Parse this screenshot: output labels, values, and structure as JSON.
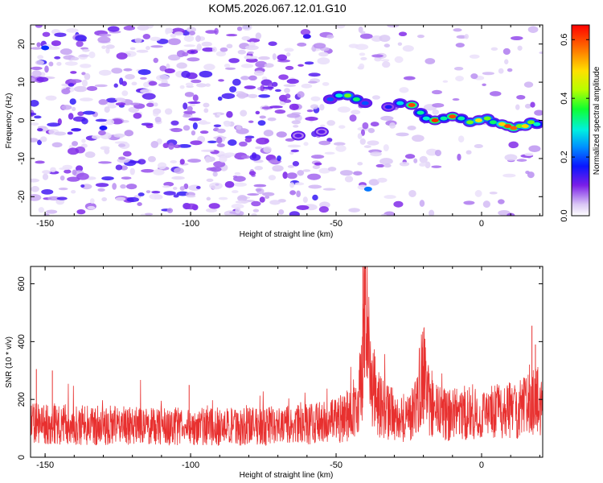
{
  "title": "KOM5.2026.067.12.01.G10",
  "chart_data": [
    {
      "type": "heatmap",
      "name": "spectrogram",
      "xlabel": "Height of straight line (km)",
      "ylabel": "Frequency (Hz)",
      "xlim": [
        -155,
        21
      ],
      "ylim": [
        -25,
        25
      ],
      "xticks": [
        -150,
        -100,
        -50,
        0
      ],
      "yticks": [
        -20,
        -10,
        0,
        10,
        20
      ],
      "colorbar": {
        "label": "Normalized spectral amplitude",
        "range": [
          0.0,
          0.65
        ],
        "ticks": [
          0.0,
          0.2,
          0.4,
          0.6
        ]
      },
      "signal_track": [
        {
          "x": -63,
          "y": -4,
          "amp": 0.12
        },
        {
          "x": -55,
          "y": -3,
          "amp": 0.12
        },
        {
          "x": -52,
          "y": 5.5,
          "amp": 0.2
        },
        {
          "x": -49,
          "y": 6.5,
          "amp": 0.3
        },
        {
          "x": -46,
          "y": 6.5,
          "amp": 0.4
        },
        {
          "x": -43,
          "y": 5.5,
          "amp": 0.34
        },
        {
          "x": -40,
          "y": 4.5,
          "amp": 0.2
        },
        {
          "x": -32,
          "y": 3.5,
          "amp": 0.16
        },
        {
          "x": -28,
          "y": 4.5,
          "amp": 0.28
        },
        {
          "x": -24,
          "y": 4,
          "amp": 0.6
        },
        {
          "x": -21,
          "y": 2,
          "amp": 0.32
        },
        {
          "x": -19,
          "y": 0.5,
          "amp": 0.3
        },
        {
          "x": -16,
          "y": 0,
          "amp": 0.62
        },
        {
          "x": -13,
          "y": 0.5,
          "amp": 0.32
        },
        {
          "x": -10,
          "y": 1,
          "amp": 0.6
        },
        {
          "x": -7,
          "y": 0.5,
          "amp": 0.32
        },
        {
          "x": -4,
          "y": -0.5,
          "amp": 0.4
        },
        {
          "x": -1,
          "y": 0,
          "amp": 0.48
        },
        {
          "x": 2,
          "y": 0.5,
          "amp": 0.4
        },
        {
          "x": 4,
          "y": -0.5,
          "amp": 0.34
        },
        {
          "x": 7,
          "y": -1,
          "amp": 0.5
        },
        {
          "x": 9,
          "y": -1.5,
          "amp": 0.6
        },
        {
          "x": 11,
          "y": -2,
          "amp": 0.58
        },
        {
          "x": 13,
          "y": -1.5,
          "amp": 0.4
        },
        {
          "x": 15,
          "y": -1.5,
          "amp": 0.5
        },
        {
          "x": 17,
          "y": -0.5,
          "amp": 0.4
        },
        {
          "x": 19,
          "y": -1,
          "amp": 0.3
        }
      ],
      "noise_blobs": [
        {
          "x": -39,
          "y": -18,
          "amp": 0.22
        },
        {
          "x": -60,
          "y": 22,
          "amp": 0.14
        },
        {
          "x": -150,
          "y": 19,
          "amp": 0.18
        },
        {
          "x": -130,
          "y": -2,
          "amp": 0.16
        }
      ]
    },
    {
      "type": "line",
      "name": "snr",
      "xlabel": "Height of straight line (km)",
      "ylabel": "SNR (10 * v/v)",
      "xlim": [
        -155,
        21
      ],
      "ylim": [
        0,
        660
      ],
      "xticks": [
        -150,
        -100,
        -50,
        0
      ],
      "yticks": [
        0,
        200,
        400,
        600
      ],
      "color": "#e8302f",
      "series": [
        {
          "name": "SNR",
          "x": [
            -155,
            -145,
            -135,
            -125,
            -115,
            -105,
            -95,
            -85,
            -75,
            -65,
            -55,
            -50,
            -45,
            -42,
            -41,
            -40,
            -39,
            -38,
            -36,
            -33,
            -30,
            -27,
            -24,
            -22,
            -21,
            -20,
            -19,
            -18,
            -16,
            -13,
            -10,
            -7,
            -4,
            -1,
            2,
            5,
            8,
            11,
            14,
            16,
            18,
            20,
            21
          ],
          "values": [
            120,
            115,
            110,
            110,
            108,
            106,
            107,
            105,
            108,
            110,
            118,
            125,
            150,
            220,
            300,
            500,
            430,
            280,
            190,
            160,
            150,
            140,
            145,
            190,
            260,
            300,
            250,
            180,
            160,
            150,
            145,
            155,
            150,
            145,
            150,
            155,
            160,
            165,
            170,
            180,
            190,
            200,
            205
          ]
        }
      ],
      "peaks": [
        {
          "x": -40.8,
          "y": 660
        },
        {
          "x": -40.2,
          "y": 640
        },
        {
          "x": -19.5,
          "y": 410
        },
        {
          "x": -20.3,
          "y": 380
        },
        {
          "x": 17.3,
          "y": 455
        },
        {
          "x": 18.5,
          "y": 390
        },
        {
          "x": -153,
          "y": 305
        },
        {
          "x": -147.5,
          "y": 300
        },
        {
          "x": -100.5,
          "y": 250
        }
      ]
    }
  ]
}
